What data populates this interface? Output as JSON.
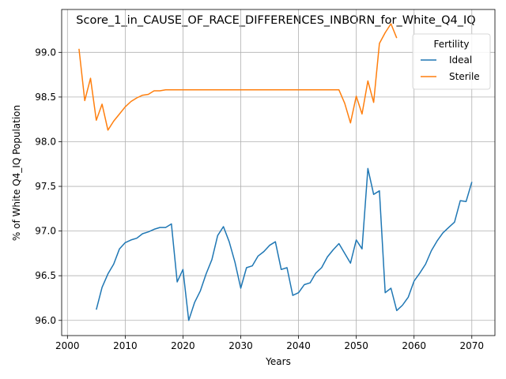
{
  "chart_data": {
    "type": "line",
    "title": "Score_1_in_CAUSE_OF_RACE_DIFFERENCES_INBORN_for_White_Q4_IQ",
    "xlabel": "Years",
    "ylabel": "% of White Q4_IQ Population",
    "xlim": [
      1999,
      2074
    ],
    "ylim": [
      95.83,
      99.48
    ],
    "x_ticks": [
      2000,
      2010,
      2020,
      2030,
      2040,
      2050,
      2060,
      2070
    ],
    "y_ticks": [
      96.0,
      96.5,
      97.0,
      97.5,
      98.0,
      98.5,
      99.0
    ],
    "x_tick_labels": [
      "2000",
      "2010",
      "2020",
      "2030",
      "2040",
      "2050",
      "2060",
      "2070"
    ],
    "y_tick_labels": [
      "96.0",
      "96.5",
      "97.0",
      "97.5",
      "98.0",
      "98.5",
      "99.0"
    ],
    "grid": true,
    "legend": {
      "title": "Fertility",
      "position": "top-right"
    },
    "series": [
      {
        "name": "Ideal",
        "color": "#1f77b4",
        "x": [
          2005,
          2006,
          2007,
          2008,
          2009,
          2010,
          2011,
          2012,
          2013,
          2014,
          2015,
          2016,
          2017,
          2018,
          2019,
          2020,
          2021,
          2022,
          2023,
          2024,
          2025,
          2026,
          2027,
          2028,
          2029,
          2030,
          2031,
          2032,
          2033,
          2034,
          2035,
          2036,
          2037,
          2038,
          2039,
          2040,
          2041,
          2042,
          2043,
          2044,
          2045,
          2046,
          2047,
          2048,
          2049,
          2050,
          2051,
          2052,
          2053,
          2054,
          2055,
          2056,
          2057,
          2058,
          2059,
          2060,
          2061,
          2062,
          2063,
          2064,
          2065,
          2066,
          2067,
          2068,
          2069,
          2070
        ],
        "y": [
          96.12,
          96.37,
          96.52,
          96.63,
          96.8,
          96.87,
          96.9,
          96.92,
          96.97,
          96.99,
          97.02,
          97.04,
          97.04,
          97.08,
          96.43,
          96.57,
          96.0,
          96.2,
          96.33,
          96.52,
          96.68,
          96.95,
          97.05,
          96.88,
          96.65,
          96.36,
          96.59,
          96.61,
          96.72,
          96.77,
          96.84,
          96.88,
          96.57,
          96.59,
          96.28,
          96.31,
          96.4,
          96.42,
          96.53,
          96.59,
          96.71,
          96.79,
          96.86,
          96.75,
          96.64,
          96.9,
          96.8,
          97.7,
          97.41,
          97.45,
          96.31,
          96.36,
          96.11,
          96.17,
          96.26,
          96.44,
          96.53,
          96.63,
          96.78,
          96.89,
          96.98,
          97.04,
          97.1,
          97.34,
          97.33,
          97.55
        ]
      },
      {
        "name": "Sterile",
        "color": "#ff7f0e",
        "x": [
          2002,
          2003,
          2004,
          2005,
          2006,
          2007,
          2008,
          2009,
          2010,
          2011,
          2012,
          2013,
          2014,
          2015,
          2016,
          2017,
          2018,
          2019,
          2020,
          2021,
          2022,
          2023,
          2024,
          2025,
          2026,
          2027,
          2028,
          2029,
          2030,
          2031,
          2032,
          2033,
          2034,
          2035,
          2036,
          2037,
          2038,
          2039,
          2040,
          2041,
          2042,
          2043,
          2044,
          2045,
          2046,
          2047,
          2048,
          2049,
          2050,
          2051,
          2052,
          2053,
          2054,
          2055,
          2056,
          2057
        ],
        "y": [
          99.04,
          98.46,
          98.71,
          98.24,
          98.42,
          98.13,
          98.23,
          98.31,
          98.39,
          98.45,
          98.49,
          98.52,
          98.53,
          98.57,
          98.57,
          98.58,
          98.58,
          98.58,
          98.58,
          98.58,
          98.58,
          98.58,
          98.58,
          98.58,
          98.58,
          98.58,
          98.58,
          98.58,
          98.58,
          98.58,
          98.58,
          98.58,
          98.58,
          98.58,
          98.58,
          98.58,
          98.58,
          98.58,
          98.58,
          98.58,
          98.58,
          98.58,
          98.58,
          98.58,
          98.58,
          98.58,
          98.43,
          98.21,
          98.51,
          98.31,
          98.68,
          98.44,
          99.1,
          99.22,
          99.32,
          99.16
        ]
      }
    ]
  }
}
